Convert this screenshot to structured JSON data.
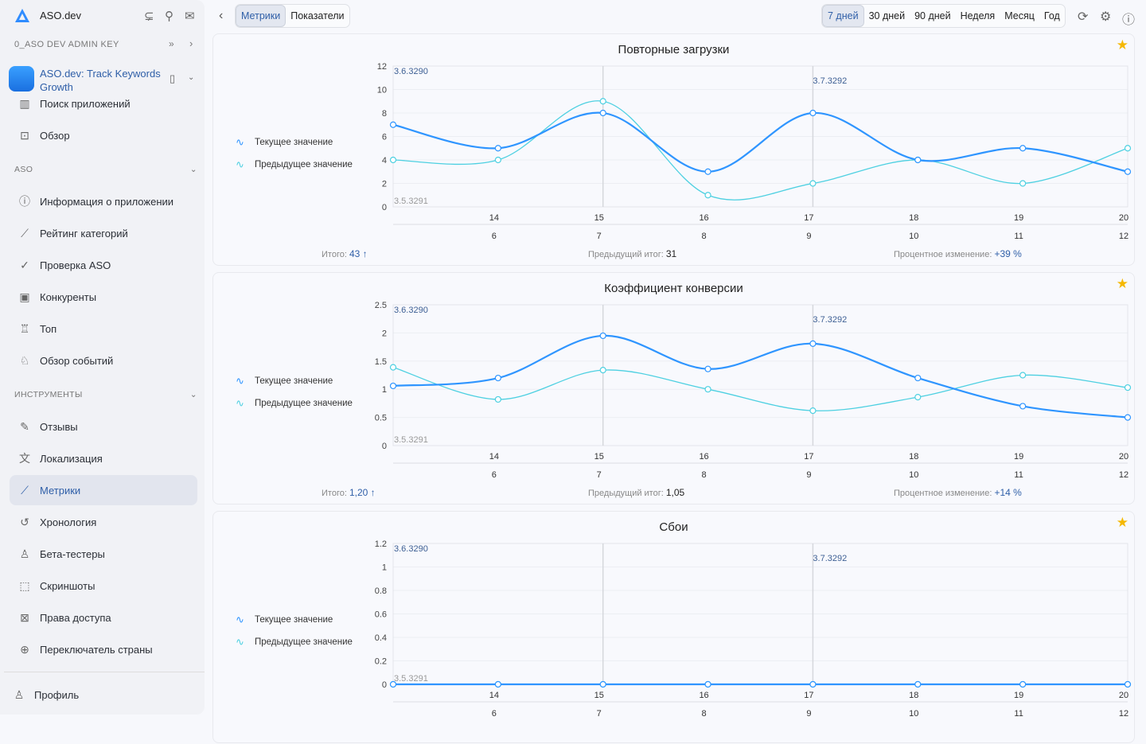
{
  "sidebar": {
    "brand": "ASO.dev",
    "account_key": "0_ASO DEV ADMIN KEY",
    "app_name": "ASO.dev: Track Keywords Growth",
    "top_items": [
      {
        "label": "Поиск приложений",
        "icon": "bar-chart-icon"
      },
      {
        "label": "Обзор",
        "icon": "overview-icon"
      }
    ],
    "sections": [
      {
        "title": "ASO",
        "items": [
          {
            "label": "Информация о приложении",
            "icon": "info-icon"
          },
          {
            "label": "Рейтинг категорий",
            "icon": "chart-icon"
          },
          {
            "label": "Проверка ASO",
            "icon": "check-icon"
          },
          {
            "label": "Конкуренты",
            "icon": "competitors-icon"
          },
          {
            "label": "Топ",
            "icon": "trophy-icon"
          },
          {
            "label": "Обзор событий",
            "icon": "bell-icon"
          }
        ]
      },
      {
        "title": "ИНСТРУМЕНТЫ",
        "items": [
          {
            "label": "Отзывы",
            "icon": "reviews-icon"
          },
          {
            "label": "Локализация",
            "icon": "translate-icon"
          },
          {
            "label": "Метрики",
            "icon": "line-chart-icon",
            "active": true
          },
          {
            "label": "Хронология",
            "icon": "history-icon"
          },
          {
            "label": "Бета-тестеры",
            "icon": "user-icon"
          },
          {
            "label": "Скриншоты",
            "icon": "screenshot-icon"
          },
          {
            "label": "Права доступа",
            "icon": "access-icon"
          },
          {
            "label": "Переключатель страны",
            "icon": "globe-icon"
          }
        ]
      }
    ],
    "profile": "Профиль"
  },
  "toolbar": {
    "tabs": [
      {
        "label": "Метрики",
        "active": true
      },
      {
        "label": "Показатели"
      }
    ],
    "ranges": [
      {
        "label": "7 дней",
        "active": true
      },
      {
        "label": "30 дней"
      },
      {
        "label": "90 дней"
      },
      {
        "label": "Неделя"
      },
      {
        "label": "Месяц"
      },
      {
        "label": "Год"
      }
    ]
  },
  "colors": {
    "current": "#2f95ff",
    "previous": "#4dd0e1",
    "accent": "#2f5fa8",
    "star": "#f5b800"
  },
  "legend": {
    "current": "Текущее значение",
    "previous": "Предыдущее значение"
  },
  "labels": {
    "total": "Итого:",
    "prev_total": "Предыдущий итог:",
    "pct": "Процентное изменение:"
  },
  "chart_data": [
    {
      "type": "line",
      "title": "Повторные загрузки",
      "ylim": [
        0,
        12
      ],
      "yticks": [
        "0",
        "2",
        "4",
        "6",
        "8",
        "10",
        "12"
      ],
      "x_top": [
        "14",
        "15",
        "16",
        "17",
        "18",
        "19",
        "20"
      ],
      "x_bottom": [
        "6",
        "7",
        "8",
        "9",
        "10",
        "11",
        "12"
      ],
      "versions": {
        "start": "3.6.3290",
        "start_prev": "3.5.3291",
        "mid": "3.7.3292"
      },
      "series": [
        {
          "name": "Текущее значение",
          "values": [
            7,
            5,
            8,
            3,
            8,
            4,
            5,
            3
          ]
        },
        {
          "name": "Предыдущее значение",
          "values": [
            4,
            4,
            9,
            1,
            2,
            4,
            2,
            5
          ]
        }
      ],
      "total": "43 ↑",
      "prev_total": "31",
      "pct": "+39 %"
    },
    {
      "type": "line",
      "title": "Коэффициент конверсии",
      "ylim": [
        0,
        2.5
      ],
      "yticks": [
        "0",
        "0.5",
        "1",
        "1.5",
        "2",
        "2.5"
      ],
      "x_top": [
        "14",
        "15",
        "16",
        "17",
        "18",
        "19",
        "20"
      ],
      "x_bottom": [
        "6",
        "7",
        "8",
        "9",
        "10",
        "11",
        "12"
      ],
      "versions": {
        "start": "3.6.3290",
        "start_prev": "3.5.3291",
        "mid": "3.7.3292"
      },
      "series": [
        {
          "name": "Текущее значение",
          "values": [
            1.06,
            1.2,
            1.95,
            1.36,
            1.81,
            1.2,
            0.7,
            0.5
          ]
        },
        {
          "name": "Предыдущее значение",
          "values": [
            1.39,
            0.82,
            1.34,
            1.0,
            0.62,
            0.86,
            1.25,
            1.03
          ]
        }
      ],
      "total": "1,20 ↑",
      "prev_total": "1,05",
      "pct": "+14 %"
    },
    {
      "type": "line",
      "title": "Сбои",
      "ylim": [
        0,
        1.2
      ],
      "yticks": [
        "0",
        "0.2",
        "0.4",
        "0.6",
        "0.8",
        "1",
        "1.2"
      ],
      "x_top": [
        "14",
        "15",
        "16",
        "17",
        "18",
        "19",
        "20"
      ],
      "x_bottom": [
        "6",
        "7",
        "8",
        "9",
        "10",
        "11",
        "12"
      ],
      "versions": {
        "start": "3.6.3290",
        "start_prev": "3.5.3291",
        "mid": "3.7.3292"
      },
      "series": [
        {
          "name": "Текущее значение",
          "values": [
            0,
            0,
            0,
            0,
            0,
            0,
            0,
            0
          ]
        },
        {
          "name": "Предыдущее значение",
          "values": [
            0,
            0,
            0,
            0,
            0,
            0,
            0,
            0
          ]
        }
      ]
    }
  ]
}
